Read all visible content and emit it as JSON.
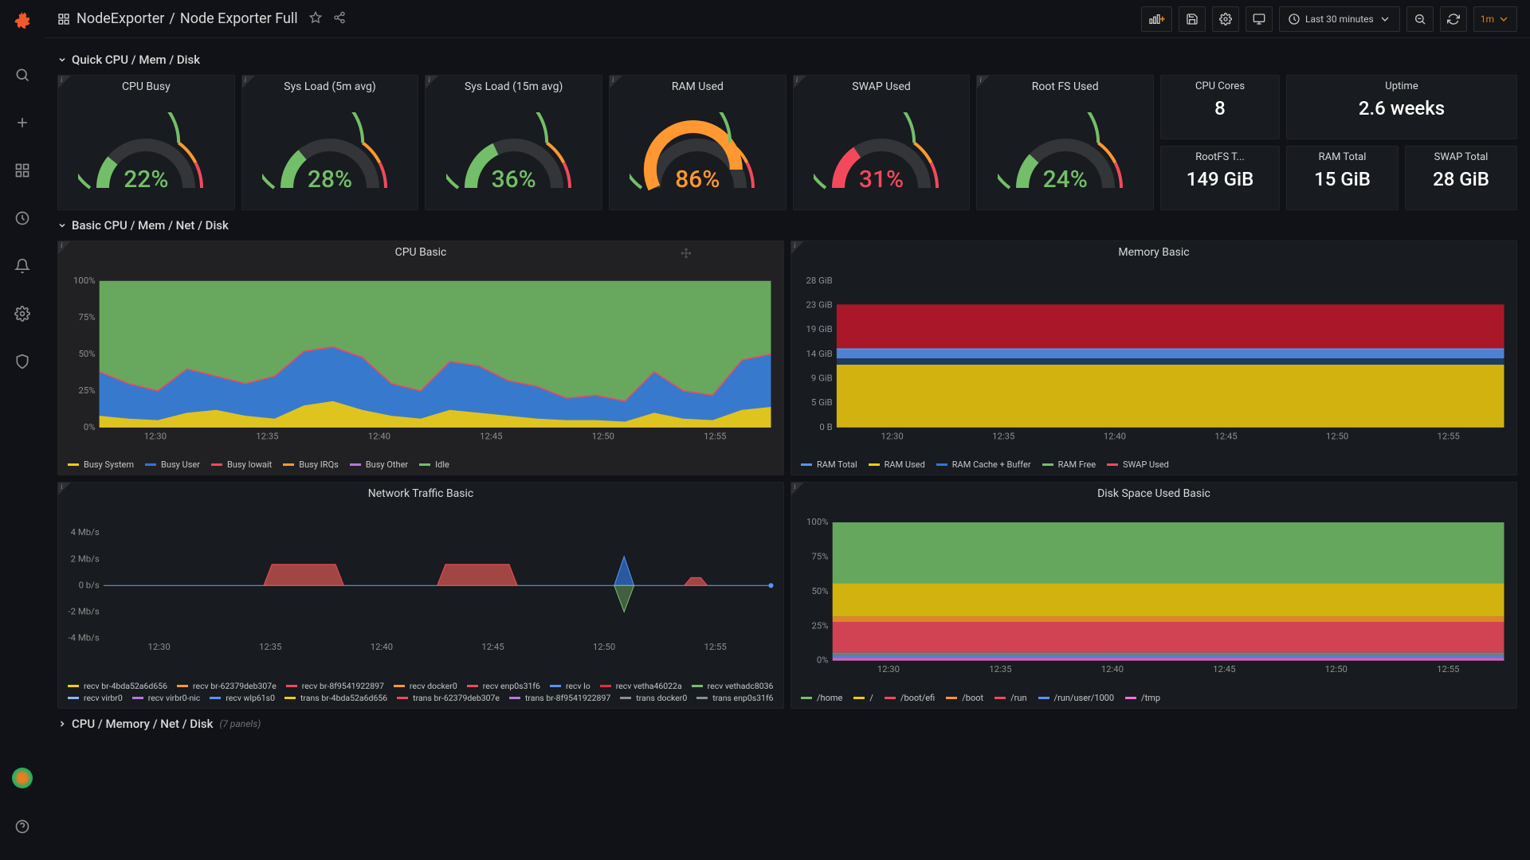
{
  "breadcrumb": {
    "folder": "NodeExporter",
    "dashboard": "Node Exporter Full"
  },
  "timepicker": {
    "range": "Last 30 minutes",
    "refresh": "1m"
  },
  "rows": {
    "quick": "Quick CPU / Mem / Disk",
    "basic": "Basic CPU / Mem / Net / Disk",
    "cpumem": "CPU / Memory / Net / Disk",
    "cpumem_count": "(7 panels)"
  },
  "gauges": [
    {
      "title": "CPU Busy",
      "value": "22%",
      "pct": 22,
      "color": "#73bf69",
      "textColor": "#73bf69"
    },
    {
      "title": "Sys Load (5m avg)",
      "value": "28%",
      "pct": 28,
      "color": "#73bf69",
      "textColor": "#73bf69"
    },
    {
      "title": "Sys Load (15m avg)",
      "value": "36%",
      "pct": 36,
      "color": "#73bf69",
      "textColor": "#73bf69"
    },
    {
      "title": "RAM Used",
      "value": "86%",
      "pct": 86,
      "color": "#ff9830",
      "textColor": "#ff9830"
    },
    {
      "title": "SWAP Used",
      "value": "31%",
      "pct": 31,
      "color": "#f2495c",
      "textColor": "#f2495c"
    },
    {
      "title": "Root FS Used",
      "value": "24%",
      "pct": 24,
      "color": "#73bf69",
      "textColor": "#73bf69"
    }
  ],
  "gauge_style": {
    "track_color": "#333538",
    "threshold_colors": [
      "#73bf69",
      "#ff9830",
      "#f2495c"
    ],
    "thresholds": [
      0,
      70,
      85
    ]
  },
  "stats": {
    "cpu_cores": {
      "title": "CPU Cores",
      "value": "8"
    },
    "uptime": {
      "title": "Uptime",
      "value": "2.6 weeks"
    },
    "rootfs": {
      "title": "RootFS T...",
      "value": "149 GiB"
    },
    "ram_total": {
      "title": "RAM Total",
      "value": "15 GiB"
    },
    "swap_total": {
      "title": "SWAP Total",
      "value": "28 GiB"
    }
  },
  "cpu_chart": {
    "title": "CPU Basic",
    "y_ticks": [
      "0%",
      "25%",
      "50%",
      "75%",
      "100%"
    ],
    "x_ticks": [
      "12:30",
      "12:35",
      "12:40",
      "12:45",
      "12:50",
      "12:55"
    ],
    "colors": {
      "system": "#f2cc0c",
      "user": "#3274d9",
      "iowait": "#f2495c",
      "irqs": "#ff9830",
      "other": "#b877d9",
      "idle": "#73bf69"
    },
    "legend": [
      "Busy System",
      "Busy User",
      "Busy Iowait",
      "Busy IRQs",
      "Busy Other",
      "Idle"
    ],
    "legend_colors": [
      "#f2cc0c",
      "#3274d9",
      "#f2495c",
      "#ff9830",
      "#b877d9",
      "#73bf69"
    ],
    "stacked_top_pct": [
      38,
      30,
      25,
      40,
      35,
      30,
      35,
      52,
      55,
      48,
      30,
      25,
      45,
      42,
      32,
      28,
      20,
      22,
      18,
      38,
      25,
      22,
      46,
      50
    ],
    "system_pct": [
      8,
      6,
      5,
      10,
      12,
      8,
      6,
      15,
      18,
      12,
      8,
      6,
      12,
      10,
      8,
      6,
      5,
      5,
      4,
      10,
      6,
      5,
      12,
      14
    ]
  },
  "mem_chart": {
    "title": "Memory Basic",
    "y_ticks": [
      "0 B",
      "5 GiB",
      "9 GiB",
      "14 GiB",
      "19 GiB",
      "23 GiB",
      "28 GiB"
    ],
    "x_ticks": [
      "12:30",
      "12:35",
      "12:40",
      "12:45",
      "12:50",
      "12:55"
    ],
    "legend": [
      "RAM Total",
      "RAM Used",
      "RAM Cache + Buffer",
      "RAM Free",
      "SWAP Used"
    ],
    "legend_colors": [
      "#5794f2",
      "#f2cc0c",
      "#3274d9",
      "#73bf69",
      "#f2495c"
    ],
    "bands": {
      "used_top_gib": 12,
      "cache_top_gib": 13.2,
      "total_gib": 15,
      "swap_top_gib": 23.5,
      "ymax": 28
    }
  },
  "net_chart": {
    "title": "Network Traffic Basic",
    "y_ticks": [
      "-4 Mb/s",
      "-2 Mb/s",
      "0 b/s",
      "2 Mb/s",
      "4 Mb/s"
    ],
    "x_ticks": [
      "12:30",
      "12:35",
      "12:40",
      "12:45",
      "12:50",
      "12:55"
    ],
    "legend_recv": [
      "recv br-4bda52a6d656",
      "recv br-62379deb307e",
      "recv br-8f9541922897",
      "recv docker0",
      "recv enp0s31f6",
      "recv lo",
      "recv vetha46022a",
      "recv vethadc8036",
      "recv virbr0",
      "recv virbr0-nic",
      "recv wlp61s0"
    ],
    "legend_trans": [
      "trans br-4bda52a6d656",
      "trans br-62379deb307e",
      "trans br-8f9541922897",
      "trans docker0",
      "trans enp0s31f6"
    ],
    "legend_colors": [
      "#f2cc0c",
      "#ff9830",
      "#f2495c",
      "#ff9830",
      "#f2495c",
      "#5794f2",
      "#e02f44",
      "#73bf69",
      "#8ab8ff",
      "#b877d9",
      "#5794f2",
      "#f2cc0c",
      "#f2495c",
      "#b877d9",
      "#8e8e8e",
      "#8e8e8e"
    ],
    "bumps": [
      {
        "start": 0.24,
        "end": 0.36,
        "h": 1.6
      },
      {
        "start": 0.5,
        "end": 0.62,
        "h": 1.6
      }
    ],
    "spike": {
      "x": 0.78,
      "up": 2.2,
      "down": -2.0
    },
    "little_bump": {
      "x": 0.88,
      "h": 0.6
    }
  },
  "disk_chart": {
    "title": "Disk Space Used Basic",
    "y_ticks": [
      "0%",
      "25%",
      "50%",
      "75%",
      "100%"
    ],
    "x_ticks": [
      "12:30",
      "12:35",
      "12:40",
      "12:45",
      "12:50",
      "12:55"
    ],
    "legend": [
      "/home",
      "/",
      "/boot/efi",
      "/boot",
      "/run",
      "/run/user/1000",
      "/tmp"
    ],
    "legend_colors": [
      "#73bf69",
      "#f2cc0c",
      "#f2495c",
      "#ff9830",
      "#f2495c",
      "#5794f2",
      "#fa6edb"
    ],
    "bands_pct": [
      2,
      4,
      6,
      28,
      32,
      56,
      100
    ],
    "band_colors": [
      "#fa6edb",
      "#5794f2",
      "#8e8e8e",
      "#f2495c",
      "#ff9830",
      "#f2cc0c",
      "#73bf69"
    ]
  }
}
